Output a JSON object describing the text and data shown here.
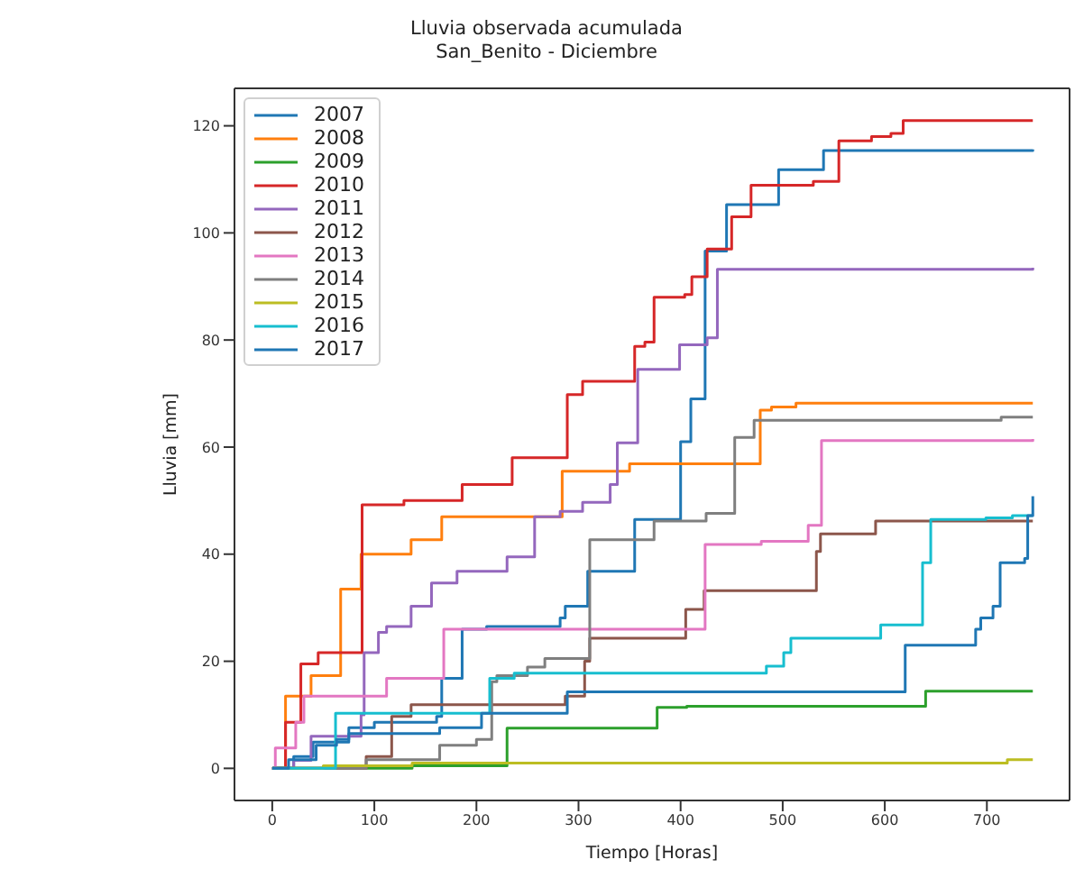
{
  "chart_data": {
    "type": "step",
    "title": "Lluvia observada acumulada",
    "subtitle": "San_Benito - Diciembre",
    "xlabel": "Tiempo [Horas]",
    "ylabel": "Lluvia [mm]",
    "xlim": [
      -37,
      781
    ],
    "xticks": [
      0,
      100,
      200,
      300,
      400,
      500,
      600,
      700
    ],
    "ylim": [
      -6,
      127
    ],
    "yticks": [
      0,
      20,
      40,
      60,
      80,
      100,
      120
    ],
    "legend": "top left",
    "marker": "none",
    "line_style": "solid",
    "grid": false,
    "series": [
      {
        "name": "2007",
        "color": "#1f77b4",
        "x": [
          0,
          21,
          40,
          75,
          100,
          161,
          166,
          186,
          210,
          282,
          287,
          309,
          355,
          397,
          400,
          410,
          424,
          445,
          496,
          540,
          745
        ],
        "values": [
          0,
          2.2,
          4.9,
          7.6,
          8.6,
          9.7,
          16.8,
          26,
          26.5,
          28.1,
          30.3,
          36.8,
          46.5,
          46.5,
          61,
          69,
          96.6,
          105.3,
          111.8,
          115.4,
          115.6
        ]
      },
      {
        "name": "2008",
        "color": "#ff7f0e",
        "x": [
          0,
          13,
          38,
          67,
          87,
          136,
          166,
          284,
          350,
          478,
          489,
          513,
          745
        ],
        "values": [
          0,
          13.5,
          17.3,
          33.5,
          40,
          42.7,
          47,
          55.5,
          56.9,
          66.9,
          67.5,
          68.2,
          68.2
        ]
      },
      {
        "name": "2009",
        "color": "#2ca02c",
        "x": [
          0,
          137,
          230,
          377,
          406,
          640,
          745
        ],
        "values": [
          0,
          0.5,
          7.5,
          11.4,
          11.6,
          14.4,
          14.4
        ]
      },
      {
        "name": "2010",
        "color": "#d62728",
        "x": [
          0,
          13,
          28,
          45,
          88,
          129,
          186,
          235,
          289,
          304,
          355,
          365,
          374,
          404,
          411,
          426,
          450,
          469,
          530,
          555,
          587,
          606,
          618,
          745
        ],
        "values": [
          0,
          8.6,
          19.5,
          21.6,
          49.2,
          50,
          53,
          58,
          69.8,
          72.3,
          78.8,
          79.6,
          88,
          88.5,
          91.8,
          97,
          103,
          108.9,
          109.6,
          117.2,
          118,
          118.6,
          121,
          121
        ]
      },
      {
        "name": "2011",
        "color": "#9467bd",
        "x": [
          0,
          21,
          38,
          87,
          90,
          104,
          112,
          136,
          156,
          181,
          230,
          257,
          282,
          304,
          331,
          338,
          358,
          399,
          426,
          436,
          745
        ],
        "values": [
          0,
          1.5,
          6,
          10,
          21.6,
          25.4,
          26.5,
          30.3,
          34.6,
          36.8,
          39.5,
          47,
          48,
          49.7,
          53,
          60.8,
          74.5,
          79.1,
          80.4,
          93.2,
          93.5
        ]
      },
      {
        "name": "2012",
        "color": "#8c564b",
        "x": [
          0,
          92,
          117,
          136,
          287,
          306,
          311,
          405,
          423,
          533,
          537,
          591,
          745
        ],
        "values": [
          0,
          2.2,
          9.7,
          11.9,
          13.5,
          20,
          24.3,
          29.7,
          33.2,
          40.5,
          43.8,
          46.2,
          46.2
        ]
      },
      {
        "name": "2013",
        "color": "#e377c2",
        "x": [
          0,
          3,
          23,
          31,
          112,
          168,
          424,
          479,
          525,
          538,
          745
        ],
        "values": [
          0,
          3.8,
          8.6,
          13.5,
          16.8,
          26,
          41.8,
          42.4,
          45.4,
          61.2,
          61.5
        ]
      },
      {
        "name": "2014",
        "color": "#7f7f7f",
        "x": [
          0,
          92,
          164,
          200,
          215,
          220,
          250,
          267,
          311,
          374,
          425,
          453,
          472,
          714,
          745
        ],
        "values": [
          0,
          1.6,
          4.3,
          5.4,
          16.2,
          17.3,
          18.9,
          20.5,
          42.7,
          46.2,
          47.6,
          61.8,
          65,
          65.6,
          65.6
        ]
      },
      {
        "name": "2015",
        "color": "#bcbd22",
        "x": [
          0,
          50,
          137,
          720,
          745
        ],
        "values": [
          0,
          0.5,
          1,
          1.6,
          1.6
        ]
      },
      {
        "name": "2016",
        "color": "#17becf",
        "x": [
          0,
          62,
          213,
          237,
          484,
          501,
          508,
          596,
          637,
          645,
          699,
          725,
          745
        ],
        "values": [
          0,
          10.3,
          16.8,
          17.8,
          19.1,
          21.6,
          24.3,
          26.8,
          38.4,
          46.5,
          46.8,
          47.2,
          47.2
        ]
      },
      {
        "name": "2017",
        "color": "#1f77b4",
        "x": [
          0,
          16,
          43,
          63,
          75,
          164,
          205,
          289,
          620,
          689,
          694,
          706,
          713,
          737,
          740,
          745
        ],
        "values": [
          0,
          1.6,
          4.3,
          5.4,
          6.5,
          7.6,
          10.3,
          14.3,
          23,
          26,
          28.1,
          30.3,
          38.4,
          39.2,
          47.2,
          50.8
        ]
      }
    ]
  }
}
